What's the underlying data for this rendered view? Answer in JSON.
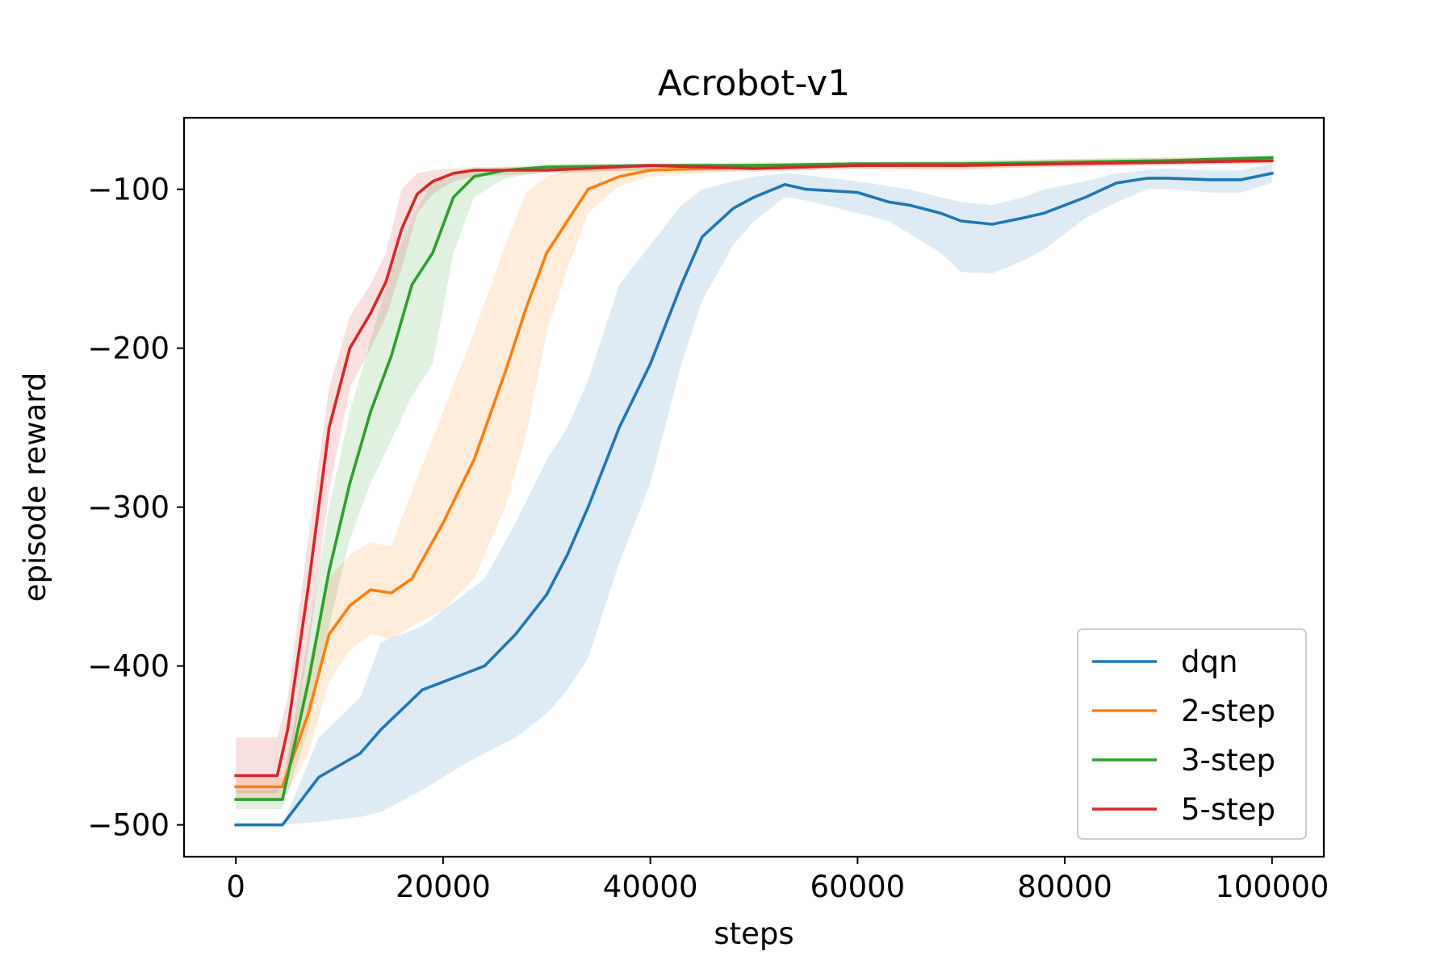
{
  "chart_data": {
    "type": "line",
    "title": "Acrobot-v1",
    "xlabel": "steps",
    "ylabel": "episode reward",
    "xlim": [
      -5000,
      105000
    ],
    "ylim": [
      -520,
      -55
    ],
    "xticks": [
      0,
      20000,
      40000,
      60000,
      80000,
      100000
    ],
    "xtick_labels": [
      "0",
      "20000",
      "40000",
      "60000",
      "80000",
      "100000"
    ],
    "yticks": [
      -100,
      -200,
      -300,
      -400,
      -500
    ],
    "ytick_labels": [
      "−100",
      "−200",
      "−300",
      "−400",
      "−500"
    ],
    "grid": false,
    "legend_position": "bottom-right",
    "series": [
      {
        "name": "dqn",
        "color": "#1f77b4",
        "x": [
          0,
          4500,
          8000,
          12000,
          14000,
          18000,
          22000,
          24000,
          27000,
          30000,
          32000,
          34000,
          37000,
          40000,
          43000,
          45000,
          48000,
          50000,
          53000,
          55000,
          60000,
          63000,
          65000,
          68000,
          70000,
          73000,
          76000,
          78000,
          82000,
          85000,
          88000,
          90000,
          94000,
          97000,
          100000
        ],
        "y": [
          -500,
          -500,
          -470,
          -455,
          -440,
          -415,
          -405,
          -400,
          -380,
          -355,
          -330,
          -300,
          -250,
          -210,
          -160,
          -130,
          -112,
          -105,
          -97,
          -100,
          -102,
          -108,
          -110,
          -115,
          -120,
          -122,
          -118,
          -115,
          -105,
          -96,
          -93,
          -93,
          -94,
          -94,
          -90
        ],
        "upper": [
          -500,
          -500,
          -445,
          -420,
          -385,
          -375,
          -355,
          -345,
          -310,
          -270,
          -250,
          -220,
          -160,
          -135,
          -110,
          -100,
          -95,
          -92,
          -90,
          -91,
          -95,
          -98,
          -100,
          -105,
          -108,
          -110,
          -105,
          -100,
          -95,
          -90,
          -88,
          -87,
          -88,
          -88,
          -84
        ],
        "lower": [
          -500,
          -500,
          -498,
          -495,
          -492,
          -478,
          -462,
          -455,
          -445,
          -430,
          -415,
          -395,
          -335,
          -285,
          -210,
          -170,
          -135,
          -120,
          -105,
          -107,
          -115,
          -120,
          -128,
          -140,
          -152,
          -153,
          -145,
          -138,
          -118,
          -108,
          -100,
          -100,
          -102,
          -102,
          -96
        ]
      },
      {
        "name": "2-step",
        "color": "#ff7f0e",
        "x": [
          0,
          4500,
          7000,
          9000,
          11000,
          13000,
          15000,
          17000,
          20000,
          23000,
          26000,
          28000,
          30000,
          32000,
          34000,
          37000,
          40000,
          45000,
          50000,
          60000,
          70000,
          80000,
          90000,
          100000
        ],
        "y": [
          -476,
          -476,
          -430,
          -380,
          -362,
          -352,
          -354,
          -345,
          -310,
          -270,
          -215,
          -175,
          -140,
          -120,
          -100,
          -92,
          -88,
          -87,
          -86,
          -85,
          -85,
          -83,
          -82,
          -82
        ],
        "upper": [
          -470,
          -470,
          -400,
          -345,
          -330,
          -322,
          -325,
          -290,
          -240,
          -190,
          -135,
          -102,
          -92,
          -88,
          -87,
          -86,
          -85,
          -85,
          -84,
          -83,
          -82,
          -81,
          -80,
          -80
        ],
        "lower": [
          -485,
          -485,
          -455,
          -410,
          -390,
          -380,
          -383,
          -375,
          -365,
          -345,
          -300,
          -255,
          -190,
          -150,
          -115,
          -98,
          -92,
          -90,
          -88,
          -87,
          -88,
          -85,
          -84,
          -84
        ]
      },
      {
        "name": "3-step",
        "color": "#2ca02c",
        "x": [
          0,
          4500,
          7000,
          9000,
          11000,
          13000,
          15000,
          17000,
          19000,
          21000,
          23000,
          26000,
          30000,
          40000,
          50000,
          60000,
          70000,
          80000,
          90000,
          100000
        ],
        "y": [
          -484,
          -484,
          -410,
          -340,
          -285,
          -240,
          -205,
          -160,
          -140,
          -105,
          -92,
          -88,
          -86,
          -85,
          -85,
          -84,
          -84,
          -83,
          -82,
          -80
        ],
        "upper": [
          -478,
          -478,
          -380,
          -300,
          -240,
          -195,
          -150,
          -118,
          -95,
          -90,
          -88,
          -86,
          -84,
          -84,
          -83,
          -83,
          -82,
          -81,
          -80,
          -79
        ],
        "lower": [
          -490,
          -490,
          -440,
          -375,
          -320,
          -285,
          -258,
          -230,
          -210,
          -140,
          -105,
          -93,
          -89,
          -88,
          -87,
          -86,
          -86,
          -85,
          -84,
          -83
        ]
      },
      {
        "name": "5-step",
        "color": "#d62728",
        "x": [
          0,
          4000,
          5000,
          7000,
          9000,
          11000,
          13000,
          14500,
          16000,
          17500,
          19000,
          21000,
          23000,
          30000,
          40000,
          50000,
          60000,
          70000,
          80000,
          90000,
          100000
        ],
        "y": [
          -469,
          -469,
          -440,
          -350,
          -250,
          -200,
          -178,
          -158,
          -125,
          -103,
          -95,
          -90,
          -88,
          -88,
          -85,
          -87,
          -85,
          -85,
          -84,
          -83,
          -82
        ],
        "upper": [
          -445,
          -445,
          -420,
          -320,
          -225,
          -180,
          -160,
          -140,
          -100,
          -90,
          -88,
          -87,
          -86,
          -86,
          -84,
          -85,
          -84,
          -83,
          -82,
          -81,
          -80
        ],
        "lower": [
          -480,
          -480,
          -470,
          -390,
          -290,
          -225,
          -200,
          -180,
          -150,
          -115,
          -103,
          -95,
          -92,
          -90,
          -88,
          -89,
          -87,
          -87,
          -86,
          -85,
          -84
        ]
      }
    ]
  }
}
